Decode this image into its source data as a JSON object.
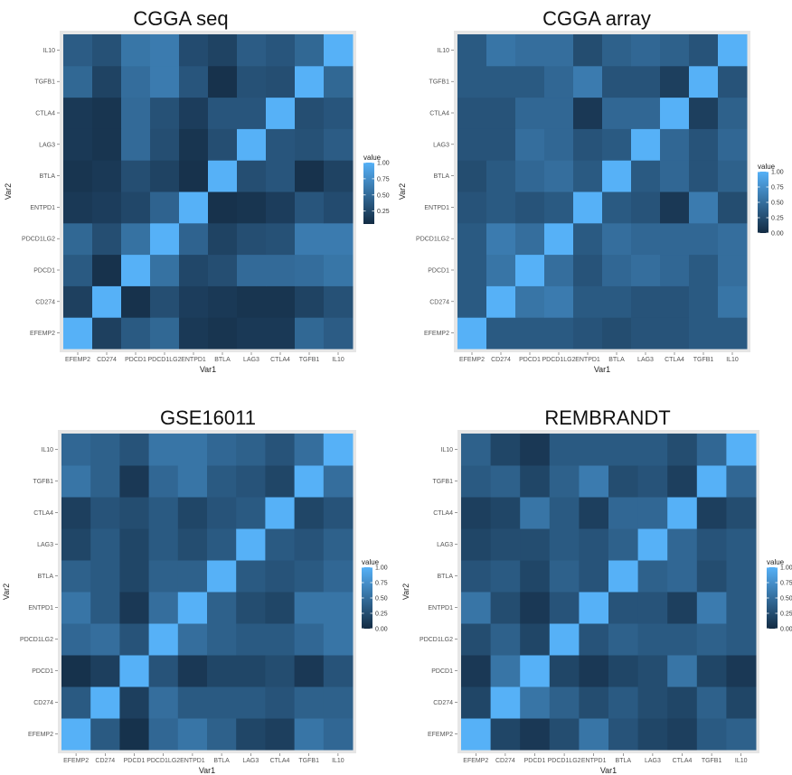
{
  "chart_data": [
    {
      "type": "heatmap",
      "title": "CGGA seq",
      "xlabel": "Var1",
      "ylabel": "Var2",
      "categories": [
        "EFEMP2",
        "CD274",
        "PDCD1",
        "PDCD1LG2",
        "ENTPD1",
        "BTLA",
        "LAG3",
        "CTLA4",
        "TGFB1",
        "IL10"
      ],
      "legend": {
        "title": "value",
        "ticks": [
          "1.00",
          "0.75",
          "0.50",
          "0.25"
        ],
        "range": [
          0.05,
          1.0
        ]
      },
      "matrix": [
        [
          1.0,
          0.2,
          0.38,
          0.48,
          0.15,
          0.12,
          0.15,
          0.15,
          0.48,
          0.4
        ],
        [
          0.2,
          1.0,
          0.1,
          0.3,
          0.18,
          0.15,
          0.12,
          0.12,
          0.22,
          0.32
        ],
        [
          0.38,
          0.1,
          1.0,
          0.55,
          0.25,
          0.3,
          0.5,
          0.5,
          0.52,
          0.58
        ],
        [
          0.48,
          0.3,
          0.55,
          1.0,
          0.45,
          0.22,
          0.3,
          0.32,
          0.62,
          0.62
        ],
        [
          0.15,
          0.18,
          0.25,
          0.45,
          1.0,
          0.1,
          0.12,
          0.18,
          0.35,
          0.28
        ],
        [
          0.12,
          0.15,
          0.3,
          0.22,
          0.1,
          1.0,
          0.3,
          0.35,
          0.1,
          0.22
        ],
        [
          0.15,
          0.12,
          0.5,
          0.3,
          0.12,
          0.3,
          1.0,
          0.35,
          0.32,
          0.4
        ],
        [
          0.15,
          0.12,
          0.5,
          0.32,
          0.18,
          0.35,
          0.35,
          1.0,
          0.3,
          0.35
        ],
        [
          0.48,
          0.22,
          0.52,
          0.62,
          0.35,
          0.1,
          0.32,
          0.3,
          1.0,
          0.48
        ],
        [
          0.4,
          0.32,
          0.58,
          0.62,
          0.28,
          0.22,
          0.4,
          0.35,
          0.48,
          1.0
        ]
      ]
    },
    {
      "type": "heatmap",
      "title": "CGGA array",
      "xlabel": "Var1",
      "ylabel": "Var2",
      "categories": [
        "EFEMP2",
        "CD274",
        "PDCD1",
        "PDCD1LG2",
        "ENTPD1",
        "BTLA",
        "LAG3",
        "CTLA4",
        "TGFB1",
        "IL10"
      ],
      "legend": {
        "title": "value",
        "ticks": [
          "1.00",
          "0.75",
          "0.50",
          "0.25",
          "0.00"
        ],
        "range": [
          0.0,
          1.0
        ]
      },
      "matrix": [
        [
          1.0,
          0.35,
          0.35,
          0.35,
          0.3,
          0.25,
          0.3,
          0.3,
          0.35,
          0.35
        ],
        [
          0.35,
          1.0,
          0.55,
          0.6,
          0.35,
          0.35,
          0.3,
          0.3,
          0.35,
          0.55
        ],
        [
          0.35,
          0.55,
          1.0,
          0.5,
          0.3,
          0.45,
          0.5,
          0.45,
          0.35,
          0.5
        ],
        [
          0.35,
          0.6,
          0.5,
          1.0,
          0.35,
          0.5,
          0.45,
          0.45,
          0.45,
          0.5
        ],
        [
          0.3,
          0.35,
          0.3,
          0.35,
          1.0,
          0.35,
          0.3,
          0.1,
          0.6,
          0.25
        ],
        [
          0.25,
          0.35,
          0.45,
          0.5,
          0.35,
          1.0,
          0.35,
          0.45,
          0.3,
          0.4
        ],
        [
          0.3,
          0.3,
          0.5,
          0.45,
          0.3,
          0.35,
          1.0,
          0.45,
          0.3,
          0.45
        ],
        [
          0.3,
          0.3,
          0.45,
          0.45,
          0.1,
          0.45,
          0.45,
          1.0,
          0.15,
          0.4
        ],
        [
          0.35,
          0.35,
          0.35,
          0.45,
          0.6,
          0.3,
          0.3,
          0.15,
          1.0,
          0.3
        ],
        [
          0.35,
          0.55,
          0.5,
          0.5,
          0.25,
          0.4,
          0.45,
          0.4,
          0.3,
          1.0
        ]
      ]
    },
    {
      "type": "heatmap",
      "title": "GSE16011",
      "xlabel": "Var1",
      "ylabel": "Var2",
      "categories": [
        "EFEMP2",
        "CD274",
        "PDCD1",
        "PDCD1LG2",
        "ENTPD1",
        "BTLA",
        "LAG3",
        "CTLA4",
        "TGFB1",
        "IL10"
      ],
      "legend": {
        "title": "value",
        "ticks": [
          "1.00",
          "0.75",
          "0.50",
          "0.25",
          "0.00"
        ],
        "range": [
          0.0,
          1.0
        ]
      },
      "matrix": [
        [
          1.0,
          0.35,
          0.05,
          0.45,
          0.55,
          0.4,
          0.2,
          0.15,
          0.55,
          0.45
        ],
        [
          0.35,
          1.0,
          0.15,
          0.5,
          0.35,
          0.35,
          0.35,
          0.3,
          0.4,
          0.4
        ],
        [
          0.05,
          0.15,
          1.0,
          0.3,
          0.1,
          0.2,
          0.2,
          0.25,
          0.1,
          0.3
        ],
        [
          0.45,
          0.5,
          0.3,
          1.0,
          0.5,
          0.4,
          0.35,
          0.35,
          0.45,
          0.55
        ],
        [
          0.55,
          0.35,
          0.1,
          0.5,
          1.0,
          0.4,
          0.25,
          0.2,
          0.55,
          0.55
        ],
        [
          0.4,
          0.35,
          0.2,
          0.4,
          0.4,
          1.0,
          0.35,
          0.3,
          0.35,
          0.45
        ],
        [
          0.2,
          0.35,
          0.2,
          0.35,
          0.25,
          0.35,
          1.0,
          0.35,
          0.3,
          0.4
        ],
        [
          0.15,
          0.3,
          0.25,
          0.35,
          0.2,
          0.3,
          0.35,
          1.0,
          0.2,
          0.3
        ],
        [
          0.55,
          0.4,
          0.1,
          0.45,
          0.55,
          0.35,
          0.3,
          0.2,
          1.0,
          0.5
        ],
        [
          0.45,
          0.4,
          0.3,
          0.55,
          0.55,
          0.45,
          0.4,
          0.3,
          0.5,
          1.0
        ]
      ]
    },
    {
      "type": "heatmap",
      "title": "REMBRANDT",
      "xlabel": "Var1",
      "ylabel": "Var2",
      "categories": [
        "EFEMP2",
        "CD274",
        "PDCD1",
        "PDCD1LG2",
        "ENTPD1",
        "BTLA",
        "LAG3",
        "CTLA4",
        "TGFB1",
        "IL10"
      ],
      "legend": {
        "title": "value",
        "ticks": [
          "1.00",
          "0.75",
          "0.50",
          "0.25",
          "0.00"
        ],
        "range": [
          0.0,
          1.0
        ]
      },
      "matrix": [
        [
          1.0,
          0.2,
          0.1,
          0.25,
          0.55,
          0.3,
          0.2,
          0.15,
          0.35,
          0.4
        ],
        [
          0.2,
          1.0,
          0.55,
          0.4,
          0.25,
          0.35,
          0.25,
          0.2,
          0.4,
          0.2
        ],
        [
          0.1,
          0.55,
          1.0,
          0.2,
          0.1,
          0.2,
          0.25,
          0.55,
          0.2,
          0.1
        ],
        [
          0.25,
          0.4,
          0.2,
          1.0,
          0.3,
          0.4,
          0.35,
          0.35,
          0.4,
          0.35
        ],
        [
          0.55,
          0.25,
          0.1,
          0.3,
          1.0,
          0.3,
          0.3,
          0.15,
          0.6,
          0.35
        ],
        [
          0.3,
          0.35,
          0.2,
          0.4,
          0.3,
          1.0,
          0.4,
          0.45,
          0.25,
          0.35
        ],
        [
          0.2,
          0.25,
          0.25,
          0.35,
          0.3,
          0.4,
          1.0,
          0.45,
          0.3,
          0.35
        ],
        [
          0.15,
          0.2,
          0.55,
          0.35,
          0.15,
          0.45,
          0.45,
          1.0,
          0.15,
          0.25
        ],
        [
          0.35,
          0.4,
          0.2,
          0.4,
          0.6,
          0.25,
          0.3,
          0.15,
          1.0,
          0.45
        ],
        [
          0.4,
          0.2,
          0.1,
          0.35,
          0.35,
          0.35,
          0.35,
          0.25,
          0.45,
          1.0
        ]
      ]
    }
  ],
  "colors": {
    "low": "#132b43",
    "high": "#56b1f7",
    "panel_border": "#e6e6e6"
  }
}
